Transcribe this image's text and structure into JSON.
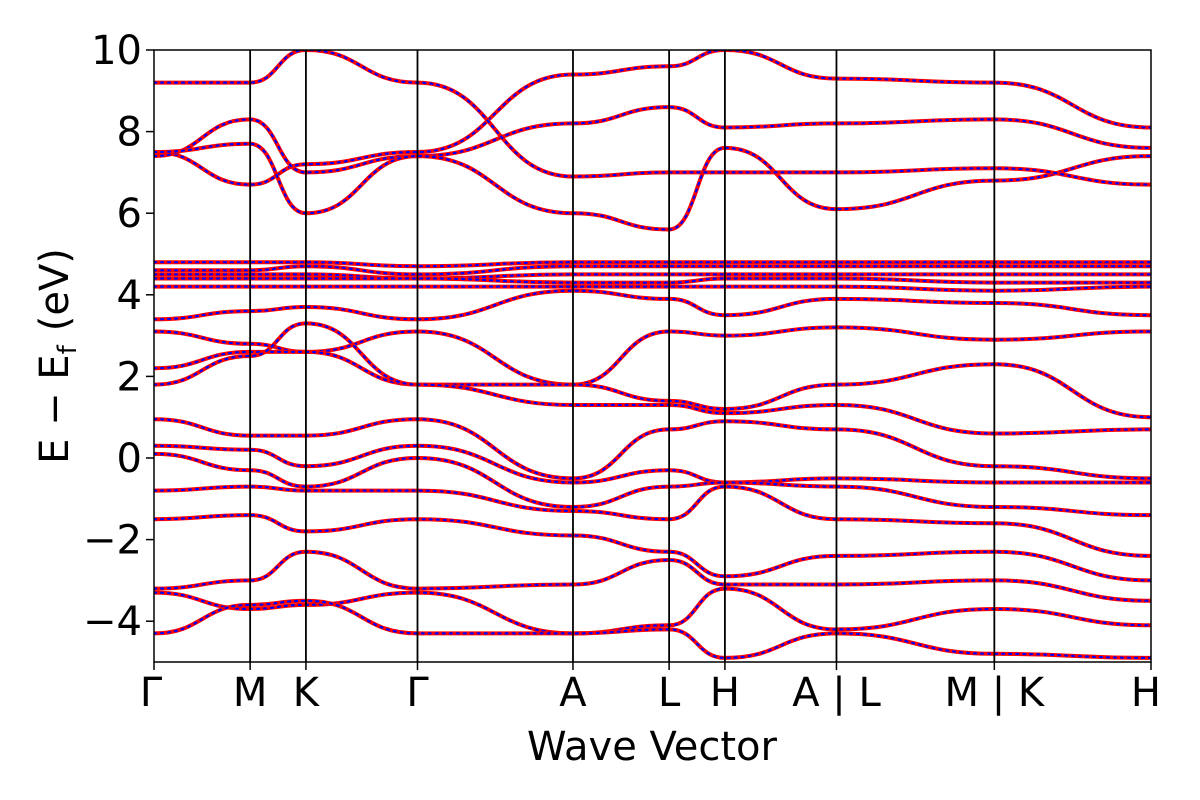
{
  "chart_data": {
    "type": "line",
    "title": "",
    "xlabel": "Wave Vector",
    "ylabel": {
      "main": "E − E",
      "subscript": "f",
      "unit": "(eV)"
    },
    "ylim": [
      -5,
      10
    ],
    "yticks": [
      {
        "value": -4,
        "label": "−4"
      },
      {
        "value": -2,
        "label": "−2"
      },
      {
        "value": 0,
        "label": "0"
      },
      {
        "value": 2,
        "label": "2"
      },
      {
        "value": 4,
        "label": "4"
      },
      {
        "value": 6,
        "label": "6"
      },
      {
        "value": 8,
        "label": "8"
      },
      {
        "value": 10,
        "label": "10"
      }
    ],
    "xlim": [
      0,
      8.4
    ],
    "kpoints": [
      {
        "x": 0.0,
        "label": "Γ"
      },
      {
        "x": 0.81,
        "label": "M"
      },
      {
        "x": 1.28,
        "label": "K"
      },
      {
        "x": 2.22,
        "label": "Γ"
      },
      {
        "x": 3.53,
        "label": "A"
      },
      {
        "x": 4.34,
        "label": "L"
      },
      {
        "x": 4.81,
        "label": "H"
      },
      {
        "x": 5.75,
        "label": "A | L"
      },
      {
        "x": 7.08,
        "label": "M | K"
      },
      {
        "x": 8.4,
        "label": "H"
      }
    ],
    "grid": false,
    "series_styles": [
      {
        "color": "#ff0000",
        "style": "solid"
      },
      {
        "color": "#0000ff",
        "style": "dotted"
      }
    ],
    "series": [
      {
        "values": [
          [
            0,
            7.5
          ],
          [
            0.81,
            6.7
          ],
          [
            1.28,
            7.2
          ],
          [
            2.22,
            7.5
          ],
          [
            3.53,
            9.4
          ],
          [
            4.34,
            9.6
          ],
          [
            4.81,
            10.0
          ],
          [
            5.75,
            9.3
          ],
          [
            7.08,
            9.2
          ],
          [
            8.4,
            8.1
          ]
        ]
      },
      {
        "values": [
          [
            0,
            7.4
          ],
          [
            0.81,
            8.3
          ],
          [
            1.28,
            7.0
          ],
          [
            2.22,
            7.4
          ],
          [
            3.53,
            8.2
          ],
          [
            4.34,
            8.6
          ],
          [
            4.81,
            8.1
          ],
          [
            5.75,
            8.2
          ],
          [
            7.08,
            8.3
          ],
          [
            8.4,
            7.6
          ]
        ]
      },
      {
        "values": [
          [
            0,
            7.5
          ],
          [
            0.81,
            7.7
          ],
          [
            1.28,
            6.0
          ],
          [
            2.22,
            7.4
          ],
          [
            3.53,
            6.0
          ],
          [
            4.34,
            5.6
          ],
          [
            4.81,
            7.6
          ],
          [
            5.75,
            6.1
          ],
          [
            7.08,
            6.8
          ],
          [
            8.4,
            7.4
          ]
        ]
      },
      {
        "values": [
          [
            0,
            9.2
          ],
          [
            0.81,
            9.2
          ],
          [
            1.28,
            10.0
          ],
          [
            2.22,
            9.2
          ],
          [
            3.53,
            6.9
          ],
          [
            4.34,
            7.0
          ],
          [
            4.81,
            7.0
          ],
          [
            5.75,
            7.0
          ],
          [
            7.08,
            7.1
          ],
          [
            8.4,
            6.7
          ]
        ]
      },
      {
        "values": [
          [
            0,
            4.8
          ],
          [
            0.81,
            4.8
          ],
          [
            1.28,
            4.8
          ],
          [
            2.22,
            4.7
          ],
          [
            3.53,
            4.8
          ],
          [
            4.34,
            4.8
          ],
          [
            4.81,
            4.8
          ],
          [
            5.75,
            4.8
          ],
          [
            7.08,
            4.8
          ],
          [
            8.4,
            4.8
          ]
        ]
      },
      {
        "values": [
          [
            0,
            4.6
          ],
          [
            0.81,
            4.6
          ],
          [
            1.28,
            4.7
          ],
          [
            2.22,
            4.5
          ],
          [
            3.53,
            4.7
          ],
          [
            4.34,
            4.7
          ],
          [
            4.81,
            4.7
          ],
          [
            5.75,
            4.7
          ],
          [
            7.08,
            4.7
          ],
          [
            8.4,
            4.7
          ]
        ]
      },
      {
        "values": [
          [
            0,
            4.5
          ],
          [
            0.81,
            4.5
          ],
          [
            1.28,
            4.5
          ],
          [
            2.22,
            4.4
          ],
          [
            3.53,
            4.5
          ],
          [
            4.34,
            4.5
          ],
          [
            4.81,
            4.5
          ],
          [
            5.75,
            4.5
          ],
          [
            7.08,
            4.5
          ],
          [
            8.4,
            4.5
          ]
        ]
      },
      {
        "values": [
          [
            0,
            4.4
          ],
          [
            0.81,
            4.4
          ],
          [
            1.28,
            4.4
          ],
          [
            2.22,
            4.4
          ],
          [
            3.53,
            4.3
          ],
          [
            4.34,
            4.3
          ],
          [
            4.81,
            4.4
          ],
          [
            5.75,
            4.4
          ],
          [
            7.08,
            4.3
          ],
          [
            8.4,
            4.3
          ]
        ]
      },
      {
        "values": [
          [
            0,
            4.2
          ],
          [
            0.81,
            4.2
          ],
          [
            1.28,
            4.2
          ],
          [
            2.22,
            4.2
          ],
          [
            3.53,
            4.2
          ],
          [
            4.34,
            4.2
          ],
          [
            4.81,
            4.2
          ],
          [
            5.75,
            4.2
          ],
          [
            7.08,
            4.1
          ],
          [
            8.4,
            4.2
          ]
        ]
      },
      {
        "values": [
          [
            0,
            3.4
          ],
          [
            0.81,
            3.6
          ],
          [
            1.28,
            3.7
          ],
          [
            2.22,
            3.4
          ],
          [
            3.53,
            4.1
          ],
          [
            4.34,
            3.9
          ],
          [
            4.81,
            3.5
          ],
          [
            5.75,
            3.9
          ],
          [
            7.08,
            3.8
          ],
          [
            8.4,
            3.5
          ]
        ]
      },
      {
        "values": [
          [
            0,
            3.1
          ],
          [
            0.81,
            2.8
          ],
          [
            1.28,
            2.6
          ],
          [
            2.22,
            3.1
          ],
          [
            3.53,
            1.8
          ],
          [
            4.34,
            3.1
          ],
          [
            4.81,
            3.0
          ],
          [
            5.75,
            3.2
          ],
          [
            7.08,
            2.9
          ],
          [
            8.4,
            3.1
          ]
        ]
      },
      {
        "values": [
          [
            0,
            2.2
          ],
          [
            0.81,
            2.6
          ],
          [
            1.28,
            2.6
          ],
          [
            2.22,
            1.8
          ],
          [
            3.53,
            1.8
          ],
          [
            4.34,
            1.4
          ],
          [
            4.81,
            1.2
          ],
          [
            5.75,
            1.8
          ],
          [
            7.08,
            2.3
          ],
          [
            8.4,
            1.0
          ]
        ]
      },
      {
        "values": [
          [
            0,
            1.8
          ],
          [
            0.81,
            2.5
          ],
          [
            1.28,
            3.3
          ],
          [
            2.22,
            1.8
          ],
          [
            3.53,
            1.3
          ],
          [
            4.34,
            1.3
          ],
          [
            4.81,
            1.1
          ],
          [
            5.75,
            1.3
          ],
          [
            7.08,
            0.6
          ],
          [
            8.4,
            0.7
          ]
        ]
      },
      {
        "values": [
          [
            0,
            0.95
          ],
          [
            0.81,
            0.55
          ],
          [
            1.28,
            0.55
          ],
          [
            2.22,
            0.95
          ],
          [
            3.53,
            -0.5
          ],
          [
            4.34,
            0.7
          ],
          [
            4.81,
            0.9
          ],
          [
            5.75,
            0.7
          ],
          [
            7.08,
            -0.2
          ],
          [
            8.4,
            -0.5
          ]
        ]
      },
      {
        "values": [
          [
            0,
            0.3
          ],
          [
            0.81,
            0.2
          ],
          [
            1.28,
            -0.2
          ],
          [
            2.22,
            0.3
          ],
          [
            3.53,
            -0.6
          ],
          [
            4.34,
            -0.3
          ],
          [
            4.81,
            -0.6
          ],
          [
            5.75,
            -0.5
          ],
          [
            7.08,
            -0.6
          ],
          [
            8.4,
            -0.6
          ]
        ]
      },
      {
        "values": [
          [
            0,
            0.1
          ],
          [
            0.81,
            -0.3
          ],
          [
            1.28,
            -0.7
          ],
          [
            2.22,
            0.0
          ],
          [
            3.53,
            -1.2
          ],
          [
            4.34,
            -0.7
          ],
          [
            4.81,
            -0.6
          ],
          [
            5.75,
            -0.7
          ],
          [
            7.08,
            -1.2
          ],
          [
            8.4,
            -1.4
          ]
        ]
      },
      {
        "values": [
          [
            0,
            -0.8
          ],
          [
            0.81,
            -0.7
          ],
          [
            1.28,
            -0.8
          ],
          [
            2.22,
            -0.8
          ],
          [
            3.53,
            -1.3
          ],
          [
            4.34,
            -1.5
          ],
          [
            4.81,
            -0.7
          ],
          [
            5.75,
            -1.5
          ],
          [
            7.08,
            -1.6
          ],
          [
            8.4,
            -2.4
          ]
        ]
      },
      {
        "values": [
          [
            0,
            -1.5
          ],
          [
            0.81,
            -1.4
          ],
          [
            1.28,
            -1.8
          ],
          [
            2.22,
            -1.5
          ],
          [
            3.53,
            -1.9
          ],
          [
            4.34,
            -2.3
          ],
          [
            4.81,
            -2.9
          ],
          [
            5.75,
            -2.4
          ],
          [
            7.08,
            -2.3
          ],
          [
            8.4,
            -3.0
          ]
        ]
      },
      {
        "values": [
          [
            0,
            -3.2
          ],
          [
            0.81,
            -3.0
          ],
          [
            1.28,
            -2.3
          ],
          [
            2.22,
            -3.2
          ],
          [
            3.53,
            -3.1
          ],
          [
            4.34,
            -2.5
          ],
          [
            4.81,
            -3.1
          ],
          [
            5.75,
            -3.1
          ],
          [
            7.08,
            -3.0
          ],
          [
            8.4,
            -3.5
          ]
        ]
      },
      {
        "values": [
          [
            0,
            -3.3
          ],
          [
            0.81,
            -3.7
          ],
          [
            1.28,
            -3.6
          ],
          [
            2.22,
            -3.3
          ],
          [
            3.53,
            -4.3
          ],
          [
            4.34,
            -4.1
          ],
          [
            4.81,
            -3.2
          ],
          [
            5.75,
            -4.2
          ],
          [
            7.08,
            -3.7
          ],
          [
            8.4,
            -4.1
          ]
        ]
      },
      {
        "values": [
          [
            0,
            -4.3
          ],
          [
            0.81,
            -3.6
          ],
          [
            1.28,
            -3.5
          ],
          [
            2.22,
            -4.3
          ],
          [
            3.53,
            -4.3
          ],
          [
            4.34,
            -4.2
          ],
          [
            4.81,
            -4.9
          ],
          [
            5.75,
            -4.3
          ],
          [
            7.08,
            -4.8
          ],
          [
            8.4,
            -4.9
          ]
        ]
      }
    ]
  }
}
